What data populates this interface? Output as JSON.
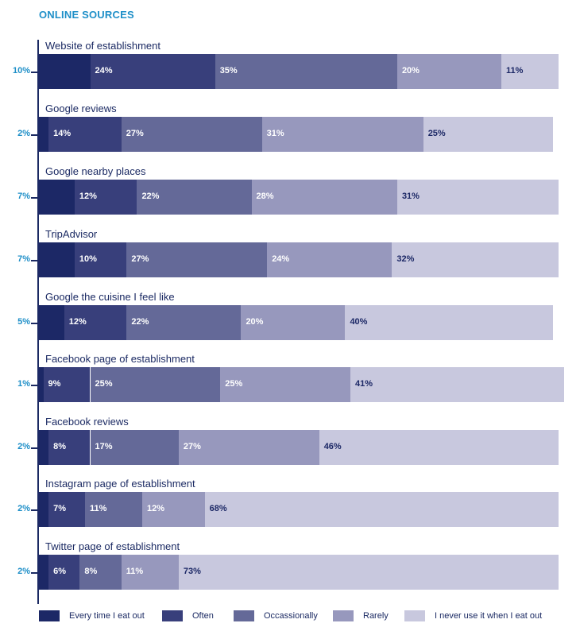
{
  "chart_data": {
    "type": "bar",
    "orientation": "horizontal-stacked",
    "title": "ONLINE SOURCES",
    "series": [
      {
        "name": "Every time I eat out",
        "color": "#1c2866"
      },
      {
        "name": "Often",
        "color": "#383f7b"
      },
      {
        "name": "Occassionally",
        "color": "#646998"
      },
      {
        "name": "Rarely",
        "color": "#9798bd"
      },
      {
        "name": "I never use it when I eat out",
        "color": "#c8c8de"
      }
    ],
    "rows": [
      {
        "category": "Website of establishment",
        "values": [
          10,
          24,
          35,
          20,
          11
        ],
        "labels": [
          "10%",
          "24%",
          "35%",
          "20%",
          "11%"
        ]
      },
      {
        "category": "Google reviews",
        "values": [
          2,
          14,
          27,
          31,
          25
        ],
        "labels": [
          "2%",
          "14%",
          "27%",
          "31%",
          "25%"
        ]
      },
      {
        "category": "Google nearby places",
        "values": [
          7,
          12,
          22,
          28,
          31
        ],
        "labels": [
          "7%",
          "12%",
          "22%",
          "28%",
          "31%"
        ]
      },
      {
        "category": "TripAdvisor",
        "values": [
          7,
          10,
          27,
          24,
          32
        ],
        "labels": [
          "7%",
          "10%",
          "27%",
          "24%",
          "32%"
        ]
      },
      {
        "category": "Google the cuisine I feel like",
        "values": [
          5,
          12,
          22,
          20,
          40
        ],
        "labels": [
          "5%",
          "12%",
          "22%",
          "20%",
          "40%"
        ]
      },
      {
        "category": "Facebook page of establishment",
        "values": [
          1,
          9,
          25,
          25,
          41
        ],
        "labels": [
          "1%",
          "9%",
          "25%",
          "25%",
          "41%"
        ]
      },
      {
        "category": "Facebook reviews",
        "values": [
          2,
          8,
          17,
          27,
          46
        ],
        "labels": [
          "2%",
          "8%",
          "17%",
          "27%",
          "46%"
        ]
      },
      {
        "category": "Instagram page of establishment",
        "values": [
          2,
          7,
          11,
          12,
          68
        ],
        "labels": [
          "2%",
          "7%",
          "11%",
          "12%",
          "68%"
        ]
      },
      {
        "category": "Twitter page of establishment",
        "values": [
          2,
          6,
          8,
          11,
          73
        ],
        "labels": [
          "2%",
          "6%",
          "8%",
          "11%",
          "73%"
        ]
      }
    ],
    "grid": false,
    "legend_position": "bottom"
  }
}
